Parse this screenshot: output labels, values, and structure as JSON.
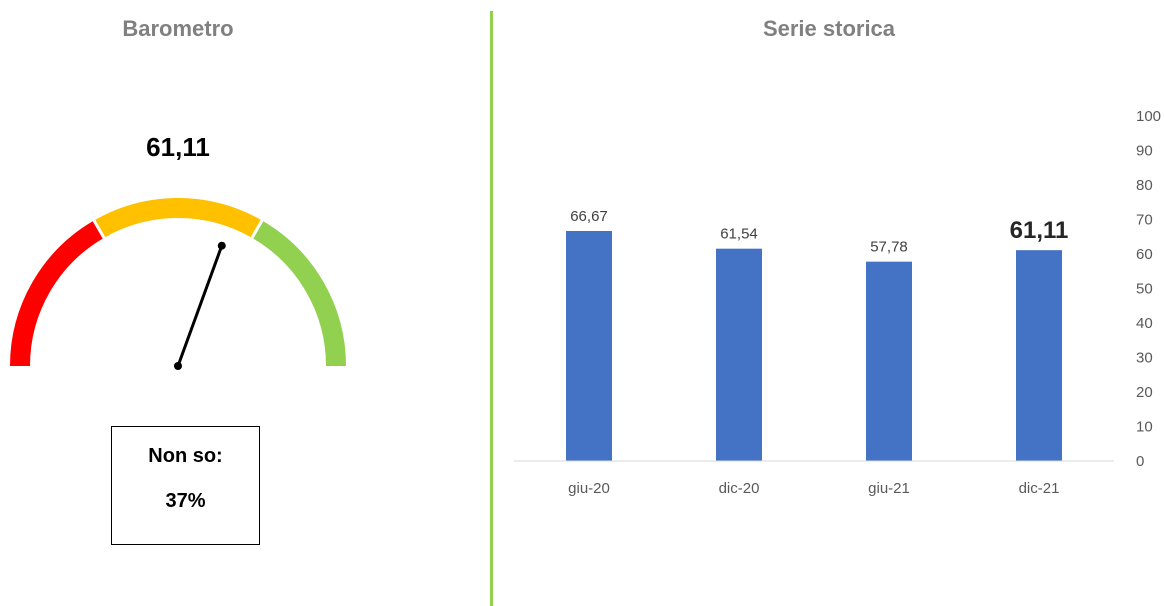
{
  "left_panel": {
    "title": "Barometro",
    "gauge_value_label": "61,11",
    "gauge_value": 61.11,
    "gauge_range": [
      0,
      100
    ],
    "gauge_bands": [
      {
        "from": 0,
        "to": 33.33,
        "color": "#ff0000"
      },
      {
        "from": 33.33,
        "to": 66.67,
        "color": "#ffc000"
      },
      {
        "from": 66.67,
        "to": 100,
        "color": "#92d050"
      }
    ],
    "needle_color": "#000000",
    "dont_know_label": "Non so:",
    "dont_know_value": "37%"
  },
  "divider_color": "#92d050",
  "right_panel": {
    "title": "Serie storica"
  },
  "chart_data": {
    "type": "bar",
    "categories": [
      "giu-20",
      "dic-20",
      "giu-21",
      "dic-21"
    ],
    "values": [
      66.67,
      61.54,
      57.78,
      61.11
    ],
    "data_labels": [
      "66,67",
      "61,54",
      "57,78",
      "61,11"
    ],
    "highlight_last_label": true,
    "bar_color": "#4472c4",
    "ylim": [
      0,
      100
    ],
    "y_ticks": [
      0,
      10,
      20,
      30,
      40,
      50,
      60,
      70,
      80,
      90,
      100
    ],
    "y_axis_side": "right",
    "grid": false
  }
}
